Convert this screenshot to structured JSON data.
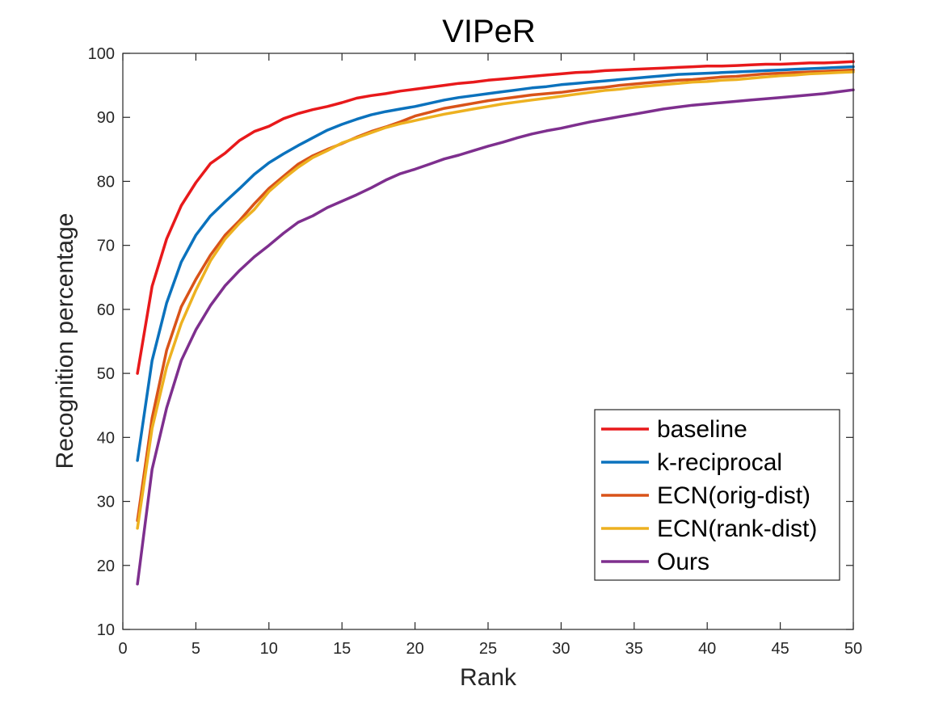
{
  "chart_data": {
    "type": "line",
    "title": "VIPeR",
    "xlabel": "Rank",
    "ylabel": "Recognition percentage",
    "xlim": [
      0,
      50
    ],
    "ylim": [
      10,
      100
    ],
    "xticks": [
      0,
      5,
      10,
      15,
      20,
      25,
      30,
      35,
      40,
      45,
      50
    ],
    "yticks": [
      10,
      20,
      30,
      40,
      50,
      60,
      70,
      80,
      90,
      100
    ],
    "grid": false,
    "legend_position": "bottom-right",
    "x": [
      1,
      2,
      3,
      4,
      5,
      6,
      7,
      8,
      9,
      10,
      11,
      12,
      13,
      14,
      15,
      16,
      17,
      18,
      19,
      20,
      21,
      22,
      23,
      24,
      25,
      26,
      27,
      28,
      29,
      30,
      31,
      32,
      33,
      34,
      35,
      36,
      37,
      38,
      39,
      40,
      41,
      42,
      43,
      44,
      45,
      46,
      47,
      48,
      49,
      50
    ],
    "series": [
      {
        "name": "baseline",
        "color": "#e8191b",
        "values": [
          50.0,
          63.6,
          71.0,
          76.2,
          79.8,
          82.8,
          84.4,
          86.4,
          87.8,
          88.6,
          89.8,
          90.6,
          91.2,
          91.7,
          92.3,
          93.0,
          93.4,
          93.7,
          94.1,
          94.4,
          94.7,
          95.0,
          95.3,
          95.5,
          95.8,
          96.0,
          96.2,
          96.4,
          96.6,
          96.8,
          97.0,
          97.1,
          97.3,
          97.4,
          97.5,
          97.6,
          97.7,
          97.8,
          97.9,
          98.0,
          98.0,
          98.1,
          98.2,
          98.3,
          98.3,
          98.4,
          98.5,
          98.5,
          98.6,
          98.7
        ]
      },
      {
        "name": "k-reciprocal",
        "color": "#0b72bd",
        "values": [
          36.4,
          52.0,
          61.0,
          67.4,
          71.6,
          74.6,
          76.8,
          78.9,
          81.1,
          82.9,
          84.3,
          85.6,
          86.8,
          88.0,
          88.9,
          89.7,
          90.4,
          90.9,
          91.3,
          91.7,
          92.2,
          92.7,
          93.1,
          93.4,
          93.7,
          94.0,
          94.3,
          94.6,
          94.8,
          95.1,
          95.3,
          95.5,
          95.7,
          95.9,
          96.1,
          96.3,
          96.5,
          96.7,
          96.8,
          96.9,
          97.0,
          97.1,
          97.2,
          97.3,
          97.4,
          97.5,
          97.6,
          97.7,
          97.8,
          97.9
        ]
      },
      {
        "name": "ECN(orig-dist)",
        "color": "#d95319",
        "values": [
          27.0,
          43.0,
          53.6,
          60.4,
          64.7,
          68.5,
          71.6,
          73.9,
          76.5,
          78.9,
          80.8,
          82.7,
          84.0,
          85.0,
          85.9,
          86.9,
          87.8,
          88.5,
          89.3,
          90.2,
          90.8,
          91.4,
          91.8,
          92.2,
          92.6,
          92.9,
          93.2,
          93.5,
          93.7,
          93.9,
          94.2,
          94.5,
          94.7,
          95.0,
          95.2,
          95.4,
          95.6,
          95.8,
          95.9,
          96.1,
          96.3,
          96.4,
          96.6,
          96.8,
          96.9,
          97.0,
          97.1,
          97.2,
          97.3,
          97.4
        ]
      },
      {
        "name": "ECN(rank-dist)",
        "color": "#edb120",
        "values": [
          25.8,
          41.4,
          51.0,
          57.8,
          63.0,
          67.6,
          71.0,
          73.5,
          75.6,
          78.4,
          80.4,
          82.2,
          83.7,
          84.8,
          86.0,
          86.8,
          87.6,
          88.4,
          89.0,
          89.5,
          90.0,
          90.5,
          90.9,
          91.3,
          91.7,
          92.1,
          92.4,
          92.7,
          93.0,
          93.3,
          93.6,
          93.9,
          94.2,
          94.4,
          94.7,
          94.9,
          95.1,
          95.3,
          95.5,
          95.6,
          95.8,
          95.9,
          96.1,
          96.3,
          96.5,
          96.6,
          96.8,
          96.9,
          97.0,
          97.1
        ]
      },
      {
        "name": "Ours",
        "color": "#7e2f8e",
        "values": [
          17.1,
          35.0,
          44.6,
          52.0,
          56.8,
          60.6,
          63.7,
          66.1,
          68.2,
          70.0,
          71.9,
          73.6,
          74.6,
          75.9,
          76.9,
          77.9,
          79.0,
          80.2,
          81.2,
          81.9,
          82.7,
          83.5,
          84.1,
          84.8,
          85.5,
          86.1,
          86.8,
          87.4,
          87.9,
          88.3,
          88.8,
          89.3,
          89.7,
          90.1,
          90.5,
          90.9,
          91.3,
          91.6,
          91.9,
          92.1,
          92.3,
          92.5,
          92.7,
          92.9,
          93.1,
          93.3,
          93.5,
          93.7,
          94.0,
          94.3
        ]
      }
    ]
  }
}
